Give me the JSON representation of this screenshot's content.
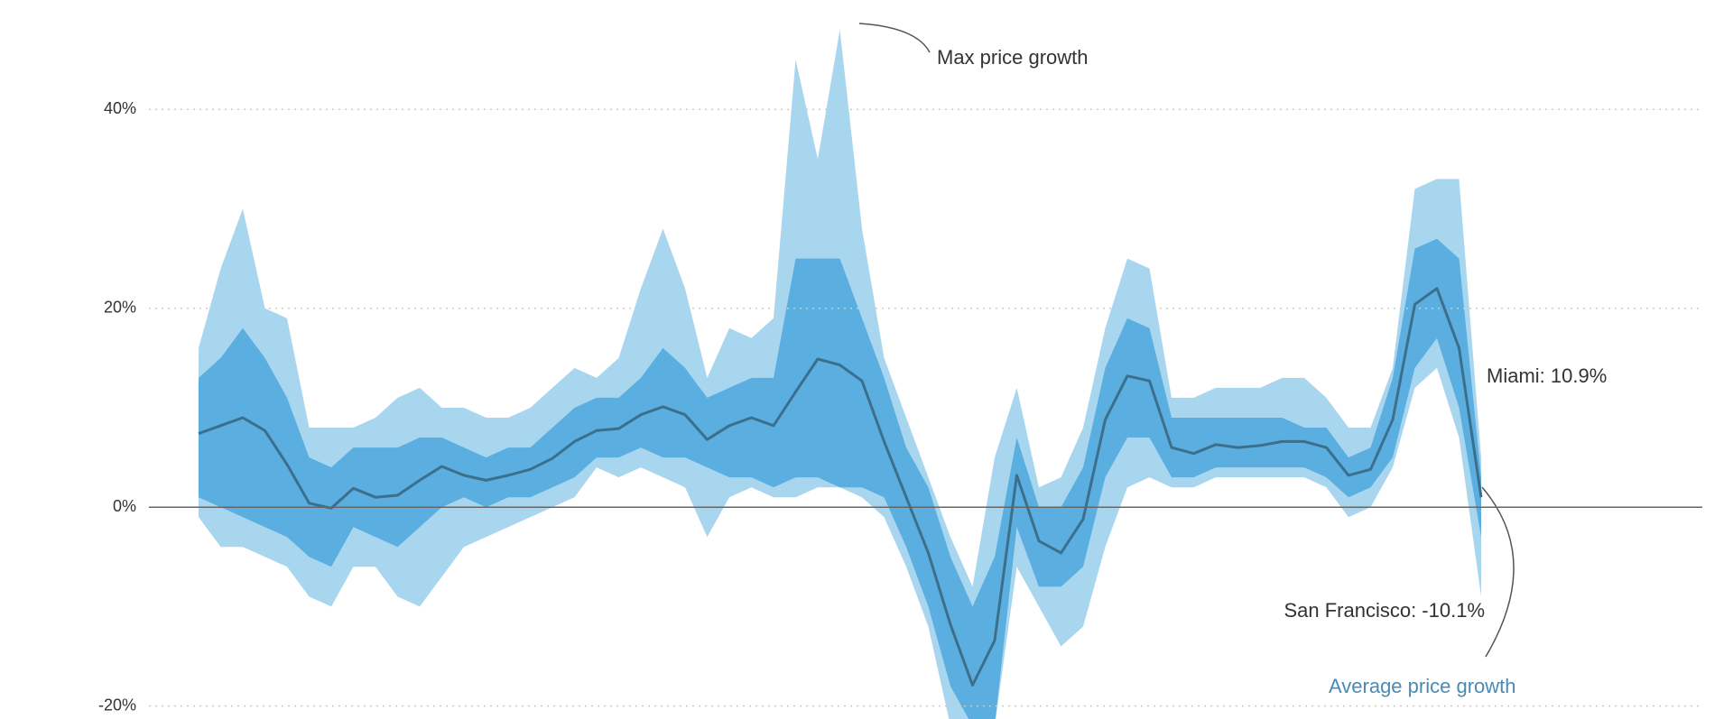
{
  "chart_data": {
    "type": "band-line",
    "ylim": [
      -21.3,
      51
    ],
    "yticks": [
      {
        "value": 40,
        "label": "40%"
      },
      {
        "value": 20,
        "label": "20%"
      },
      {
        "value": 0,
        "label": "0%"
      },
      {
        "value": -20,
        "label": "-20%"
      }
    ],
    "grid": true,
    "series": [
      {
        "name": "Max price growth",
        "color": "#a9d6ef",
        "values": [
          16,
          24,
          30,
          20,
          19,
          8,
          8,
          8,
          9,
          11,
          12,
          10,
          10,
          9,
          9,
          10,
          12,
          14,
          13,
          15,
          22,
          28,
          22,
          13,
          18,
          17,
          19,
          45,
          35,
          48,
          28,
          15,
          9,
          3,
          -3,
          -8,
          5,
          12,
          2,
          3,
          8,
          18,
          25,
          24,
          11,
          11,
          12,
          12,
          12,
          13,
          13,
          11,
          8,
          8,
          14,
          32,
          33,
          33,
          5
        ]
      },
      {
        "color": "#a9d6ef",
        "values": [
          -1,
          -4,
          -4,
          -5,
          -6,
          -9,
          -10,
          -6,
          -6,
          -9,
          -10,
          -7,
          -4,
          -3,
          -2,
          -1,
          0,
          1,
          4,
          3,
          4,
          3,
          2,
          -3,
          1,
          2,
          1,
          1,
          2,
          2,
          1,
          -1,
          -6,
          -12,
          -22,
          -22,
          -22,
          -6,
          -10,
          -14,
          -12,
          -4,
          2,
          3,
          2,
          2,
          3,
          3,
          3,
          3,
          3,
          2,
          -1,
          0,
          4,
          12,
          14,
          7,
          -9
        ]
      },
      {
        "color": "#5aaee0",
        "values": [
          13,
          15,
          18,
          15,
          11,
          5,
          4,
          6,
          6,
          6,
          7,
          7,
          6,
          5,
          6,
          6,
          8,
          10,
          11,
          11,
          13,
          16,
          14,
          11,
          12,
          13,
          13,
          25,
          25,
          25,
          19,
          13,
          6,
          2,
          -5,
          -10,
          -5,
          7,
          0,
          0,
          4,
          14,
          19,
          18,
          9,
          9,
          9,
          9,
          9,
          9,
          8,
          8,
          5,
          6,
          13,
          26,
          27,
          25,
          3
        ]
      },
      {
        "color": "#5aaee0",
        "values": [
          1,
          0,
          -1,
          -2,
          -3,
          -5,
          -6,
          -2,
          -3,
          -4,
          -2,
          0,
          1,
          0,
          1,
          1,
          2,
          3,
          5,
          5,
          6,
          5,
          5,
          4,
          3,
          3,
          2,
          3,
          3,
          2,
          2,
          1,
          -4,
          -10,
          -18,
          -22,
          -22,
          -2,
          -8,
          -8,
          -6,
          3,
          7,
          7,
          3,
          3,
          4,
          4,
          4,
          4,
          4,
          3,
          1,
          2,
          5,
          14,
          17,
          10,
          -3
        ]
      },
      {
        "name": "Average price growth",
        "color": "#3b6f8c",
        "values": [
          7.4,
          8.2,
          9,
          7.7,
          4.3,
          0.4,
          -0.1,
          1.9,
          1,
          1.2,
          2.7,
          4.1,
          3.2,
          2.7,
          3.2,
          3.8,
          4.9,
          6.6,
          7.7,
          7.9,
          9.3,
          10.1,
          9.3,
          6.8,
          8.2,
          9,
          8.2,
          11.6,
          14.9,
          14.3,
          12.7,
          6.6,
          1,
          -4.6,
          -11.8,
          -17.9,
          -13.4,
          3.2,
          -3.4,
          -4.6,
          -1.2,
          8.8,
          13.2,
          12.7,
          6,
          5.4,
          6.3,
          6,
          6.2,
          6.6,
          6.6,
          6,
          3.2,
          3.8,
          8.8,
          20.4,
          22,
          16,
          1
        ]
      }
    ],
    "annotations": [
      "Miami: 10.9%",
      "San Francisco: -10.1%"
    ]
  }
}
